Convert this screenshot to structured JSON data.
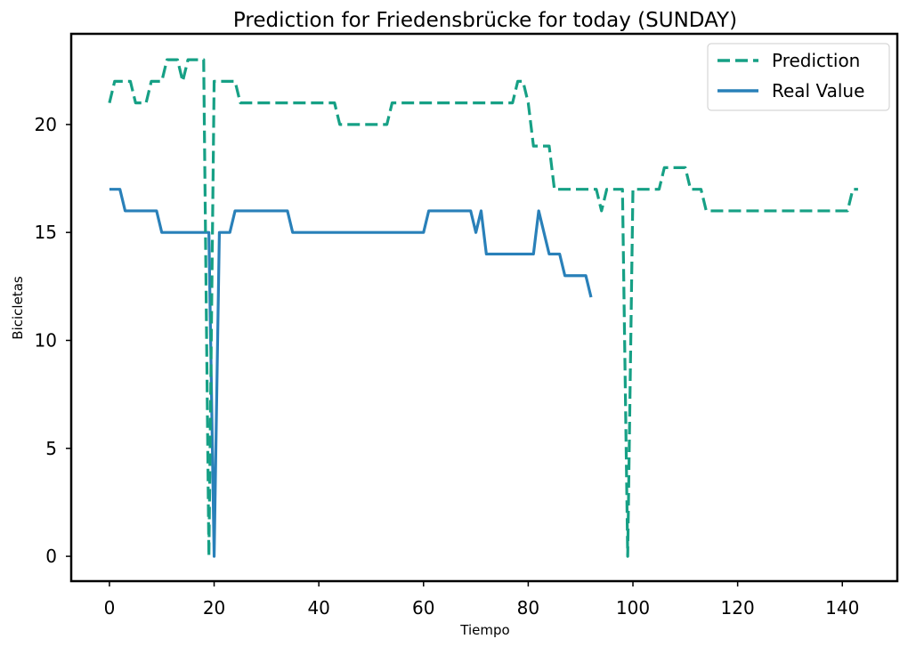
{
  "chart_data": {
    "type": "line",
    "title": "Prediction for Friedensbrücke for today (SUNDAY)",
    "xlabel": "Tiempo",
    "ylabel": "Bicicletas",
    "xlim": [
      -7.3,
      150.5
    ],
    "ylim": [
      -1.15,
      24.2
    ],
    "xticks": [
      0,
      20,
      40,
      60,
      80,
      100,
      120,
      140
    ],
    "yticks": [
      0,
      5,
      10,
      15,
      20
    ],
    "grid": false,
    "legend_position": "top-right",
    "series": [
      {
        "name": "Prediction",
        "style": "dashed",
        "color": "#16a085",
        "x": [
          0,
          1,
          2,
          3,
          4,
          5,
          6,
          7,
          8,
          9,
          10,
          11,
          12,
          13,
          14,
          15,
          16,
          17,
          18,
          19,
          20,
          21,
          22,
          23,
          24,
          25,
          26,
          27,
          28,
          29,
          30,
          31,
          32,
          33,
          34,
          35,
          36,
          37,
          38,
          39,
          40,
          41,
          42,
          43,
          44,
          45,
          46,
          47,
          48,
          49,
          50,
          51,
          52,
          53,
          54,
          55,
          56,
          57,
          58,
          59,
          60,
          61,
          62,
          63,
          64,
          65,
          66,
          67,
          68,
          69,
          70,
          71,
          72,
          73,
          74,
          75,
          76,
          77,
          78,
          79,
          80,
          81,
          82,
          83,
          84,
          85,
          86,
          87,
          88,
          89,
          90,
          91,
          92,
          93,
          94,
          95,
          96,
          97,
          98,
          99,
          100,
          101,
          102,
          103,
          104,
          105,
          106,
          107,
          108,
          109,
          110,
          111,
          112,
          113,
          114,
          115,
          116,
          117,
          118,
          119,
          120,
          121,
          122,
          123,
          124,
          125,
          126,
          127,
          128,
          129,
          130,
          131,
          132,
          133,
          134,
          135,
          136,
          137,
          138,
          139,
          140,
          141,
          142,
          143
        ],
        "values": [
          21,
          22,
          22,
          22,
          22,
          21,
          21,
          21,
          22,
          22,
          22,
          23,
          23,
          23,
          22,
          23,
          23,
          23,
          23,
          0,
          22,
          22,
          22,
          22,
          22,
          21,
          21,
          21,
          21,
          21,
          21,
          21,
          21,
          21,
          21,
          21,
          21,
          21,
          21,
          21,
          21,
          21,
          21,
          21,
          20,
          20,
          20,
          20,
          20,
          20,
          20,
          20,
          20,
          20,
          21,
          21,
          21,
          21,
          21,
          21,
          21,
          21,
          21,
          21,
          21,
          21,
          21,
          21,
          21,
          21,
          21,
          21,
          21,
          21,
          21,
          21,
          21,
          21,
          22,
          22,
          21,
          19,
          19,
          19,
          19,
          17,
          17,
          17,
          17,
          17,
          17,
          17,
          17,
          17,
          16,
          17,
          17,
          17,
          17,
          0,
          17,
          17,
          17,
          17,
          17,
          17,
          18,
          18,
          18,
          18,
          18,
          17,
          17,
          17,
          16,
          16,
          16,
          16,
          16,
          16,
          16,
          16,
          16,
          16,
          16,
          16,
          16,
          16,
          16,
          16,
          16,
          16,
          16,
          16,
          16,
          16,
          16,
          16,
          16,
          16,
          16,
          16,
          17,
          17
        ]
      },
      {
        "name": "Real Value",
        "style": "solid",
        "color": "#2980b9",
        "x": [
          0,
          1,
          2,
          3,
          4,
          5,
          6,
          7,
          8,
          9,
          10,
          11,
          12,
          13,
          14,
          15,
          16,
          17,
          18,
          19,
          20,
          21,
          22,
          23,
          24,
          25,
          26,
          27,
          28,
          29,
          30,
          31,
          32,
          33,
          34,
          35,
          36,
          37,
          38,
          39,
          40,
          41,
          42,
          43,
          44,
          45,
          46,
          47,
          48,
          49,
          50,
          51,
          52,
          53,
          54,
          55,
          56,
          57,
          58,
          59,
          60,
          61,
          62,
          63,
          64,
          65,
          66,
          67,
          68,
          69,
          70,
          71,
          72,
          73,
          74,
          75,
          76,
          77,
          78,
          79,
          80,
          81,
          82,
          83,
          84,
          85,
          86,
          87,
          88,
          89,
          90,
          91,
          92
        ],
        "values": [
          17,
          17,
          17,
          16,
          16,
          16,
          16,
          16,
          16,
          16,
          15,
          15,
          15,
          15,
          15,
          15,
          15,
          15,
          15,
          15,
          0,
          15,
          15,
          15,
          16,
          16,
          16,
          16,
          16,
          16,
          16,
          16,
          16,
          16,
          16,
          15,
          15,
          15,
          15,
          15,
          15,
          15,
          15,
          15,
          15,
          15,
          15,
          15,
          15,
          15,
          15,
          15,
          15,
          15,
          15,
          15,
          15,
          15,
          15,
          15,
          15,
          16,
          16,
          16,
          16,
          16,
          16,
          16,
          16,
          16,
          15,
          16,
          14,
          14,
          14,
          14,
          14,
          14,
          14,
          14,
          14,
          14,
          16,
          15,
          14,
          14,
          14,
          13,
          13,
          13,
          13,
          13,
          12
        ]
      }
    ]
  }
}
